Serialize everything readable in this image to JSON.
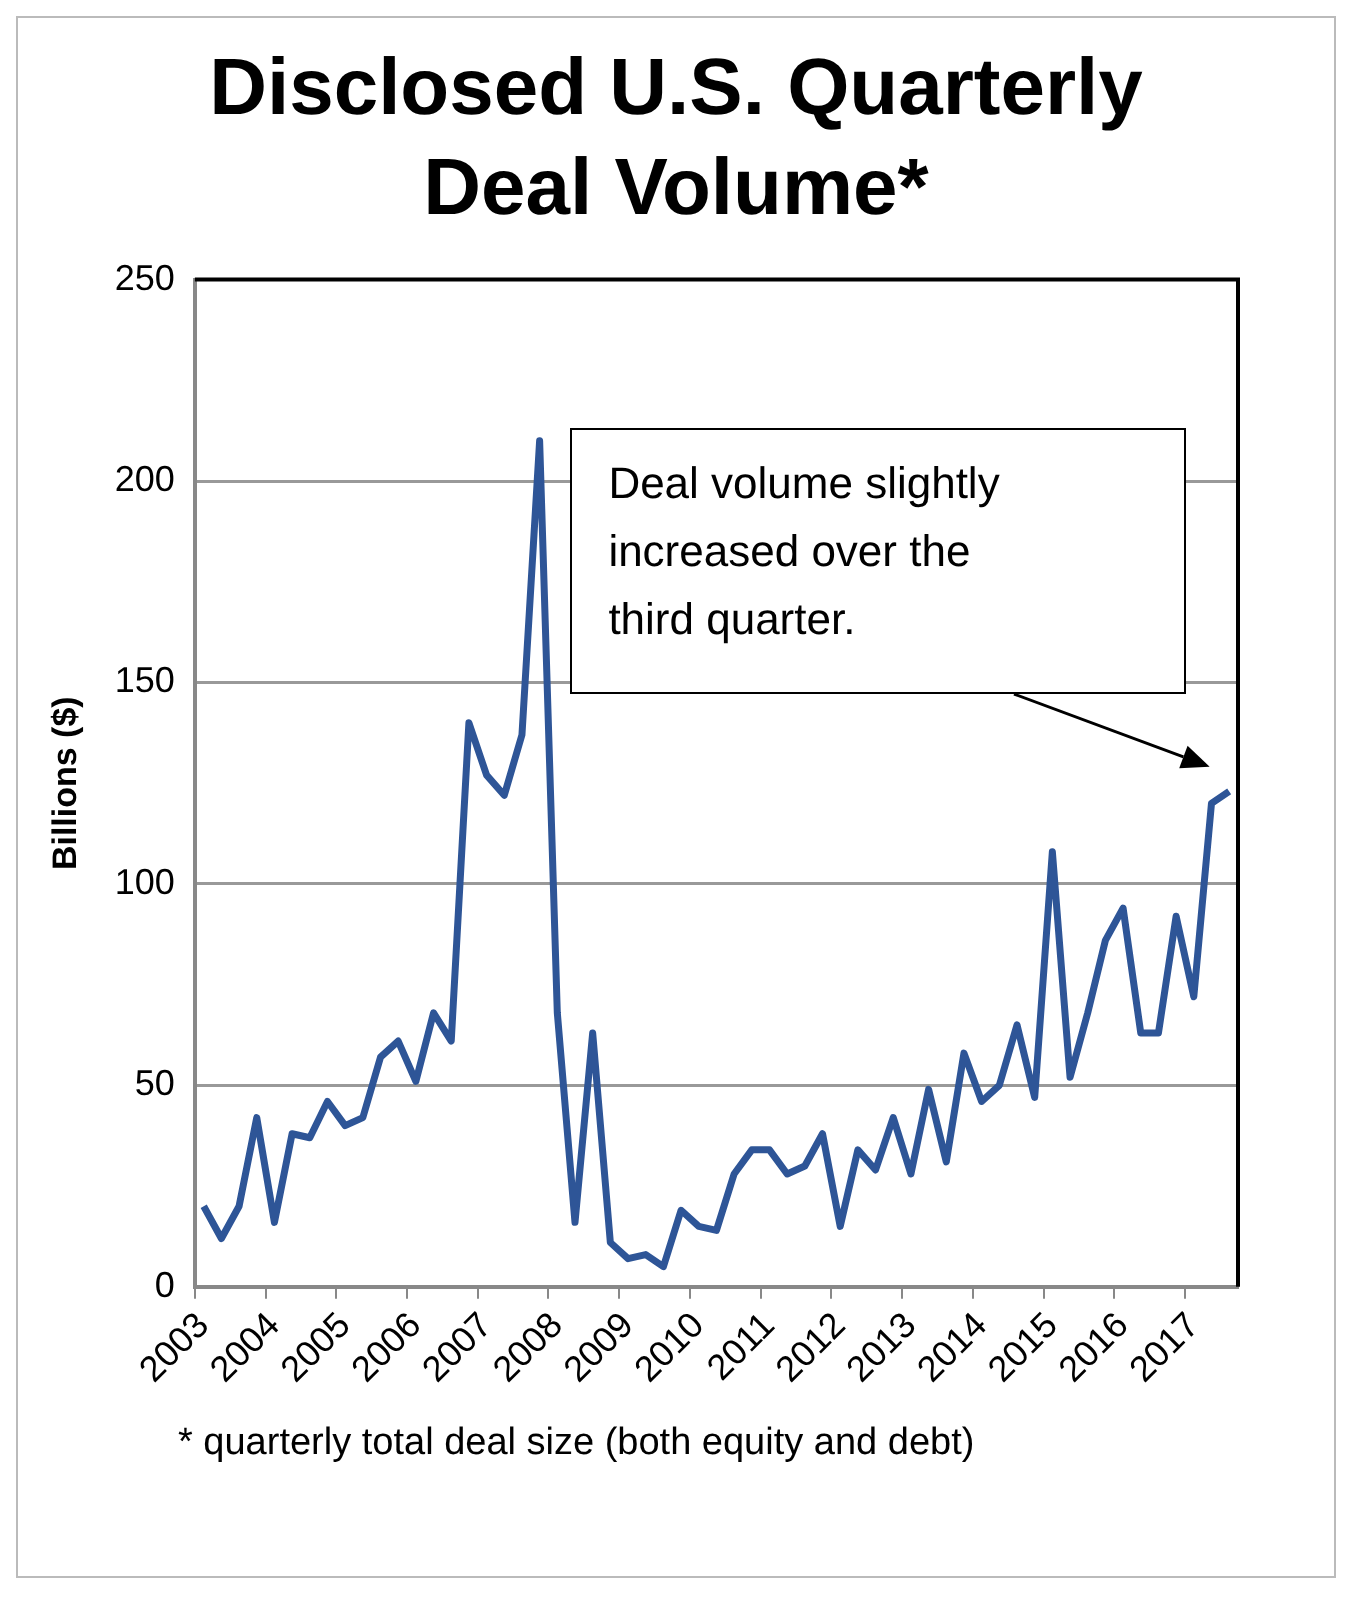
{
  "chart_data": {
    "type": "line",
    "title": "Disclosed U.S. Quarterly Deal Volume*",
    "ylabel": "Billions ($)",
    "categories": [
      "2003",
      null,
      null,
      null,
      "2004",
      null,
      null,
      null,
      "2005",
      null,
      null,
      null,
      "2006",
      null,
      null,
      null,
      "2007",
      null,
      null,
      null,
      "2008",
      null,
      null,
      null,
      "2009",
      null,
      null,
      null,
      "2010",
      null,
      null,
      null,
      "2011",
      null,
      null,
      null,
      "2012",
      null,
      null,
      null,
      "2013",
      null,
      null,
      null,
      "2014",
      null,
      null,
      null,
      "2015",
      null,
      null,
      null,
      "2016",
      null,
      null,
      null,
      "2017",
      null,
      null
    ],
    "series": [
      {
        "color": "#2e5597",
        "values": [
          20,
          12,
          20,
          42,
          16,
          38,
          37,
          46,
          40,
          42,
          57,
          61,
          51,
          68,
          61,
          140,
          127,
          122,
          137,
          210,
          68,
          16,
          63,
          11,
          7,
          8,
          5,
          19,
          15,
          14,
          28,
          34,
          34,
          28,
          30,
          38,
          15,
          34,
          29,
          42,
          28,
          49,
          31,
          58,
          46,
          50,
          65,
          47,
          108,
          52,
          68,
          86,
          94,
          63,
          63,
          92,
          72,
          120,
          123
        ]
      }
    ],
    "ylim": [
      0,
      250
    ],
    "yticks": [
      0,
      50,
      100,
      150,
      200,
      250
    ],
    "grid": "y",
    "legend": false,
    "marker": "none",
    "line_style": "solid",
    "annotations": [
      "Deal volume slightly increased over the third quarter.",
      "* quarterly total deal size (both equity and debt)"
    ]
  }
}
